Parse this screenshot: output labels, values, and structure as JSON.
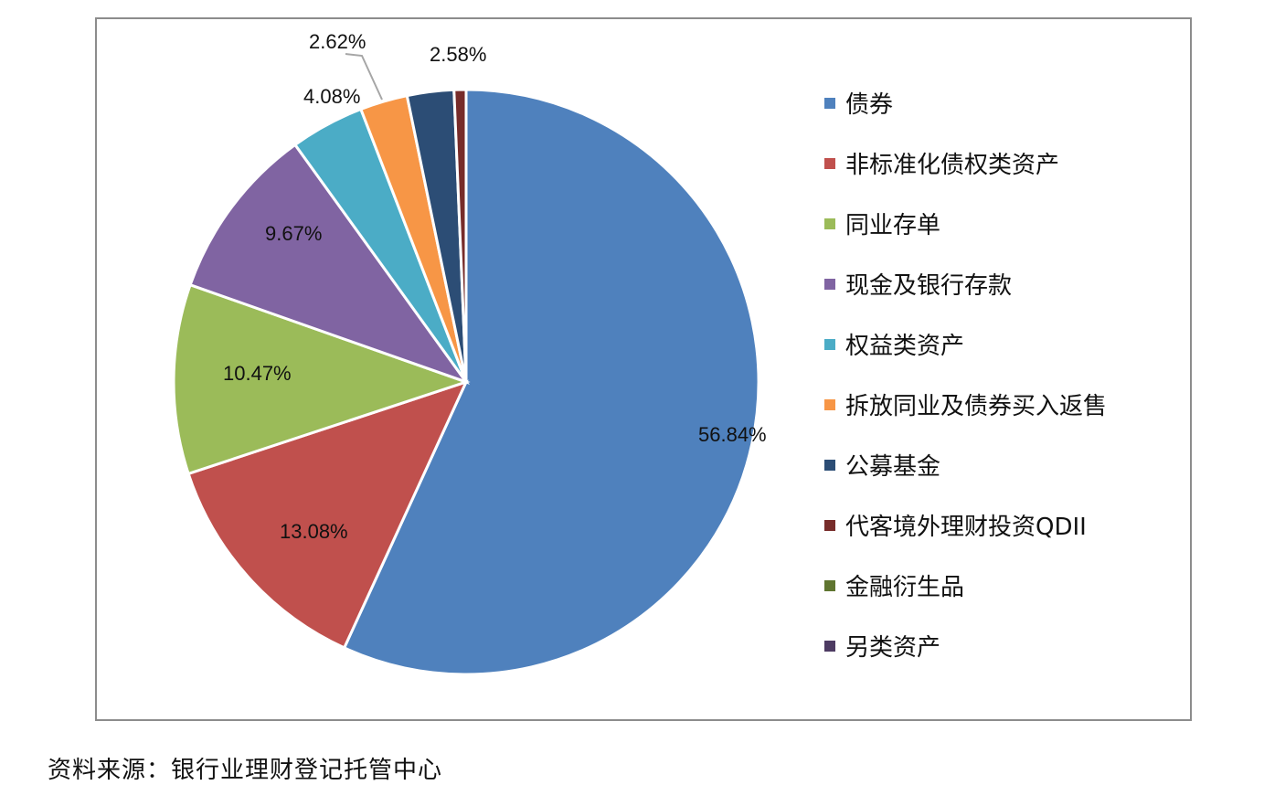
{
  "chart_data": {
    "type": "pie",
    "title": "",
    "legend_position": "right",
    "series": [
      {
        "name": "债券",
        "value": 56.84,
        "label": "56.84%",
        "color": "#4F81BD"
      },
      {
        "name": "非标准化债权类资产",
        "value": 13.08,
        "label": "13.08%",
        "color": "#C0504D"
      },
      {
        "name": "同业存单",
        "value": 10.47,
        "label": "10.47%",
        "color": "#9BBB59"
      },
      {
        "name": "现金及银行存款",
        "value": 9.67,
        "label": "9.67%",
        "color": "#8064A2"
      },
      {
        "name": "权益类资产",
        "value": 4.08,
        "label": "4.08%",
        "color": "#4BACC6"
      },
      {
        "name": "拆放同业及债券买入返售",
        "value": 2.62,
        "label": "2.62%",
        "color": "#F79646"
      },
      {
        "name": "公募基金",
        "value": 2.58,
        "label": "2.58%",
        "color": "#2C4D75"
      },
      {
        "name": "代客境外理财投资QDII",
        "value": 0.66,
        "label": "",
        "color": "#772C2A"
      },
      {
        "name": "金融衍生品",
        "value": 0.0,
        "label": "",
        "color": "#5F7530"
      },
      {
        "name": "另类资产",
        "value": 0.0,
        "label": "",
        "color": "#4D3B62"
      }
    ]
  },
  "footer": {
    "source": "资料来源：银行业理财登记托管中心"
  }
}
